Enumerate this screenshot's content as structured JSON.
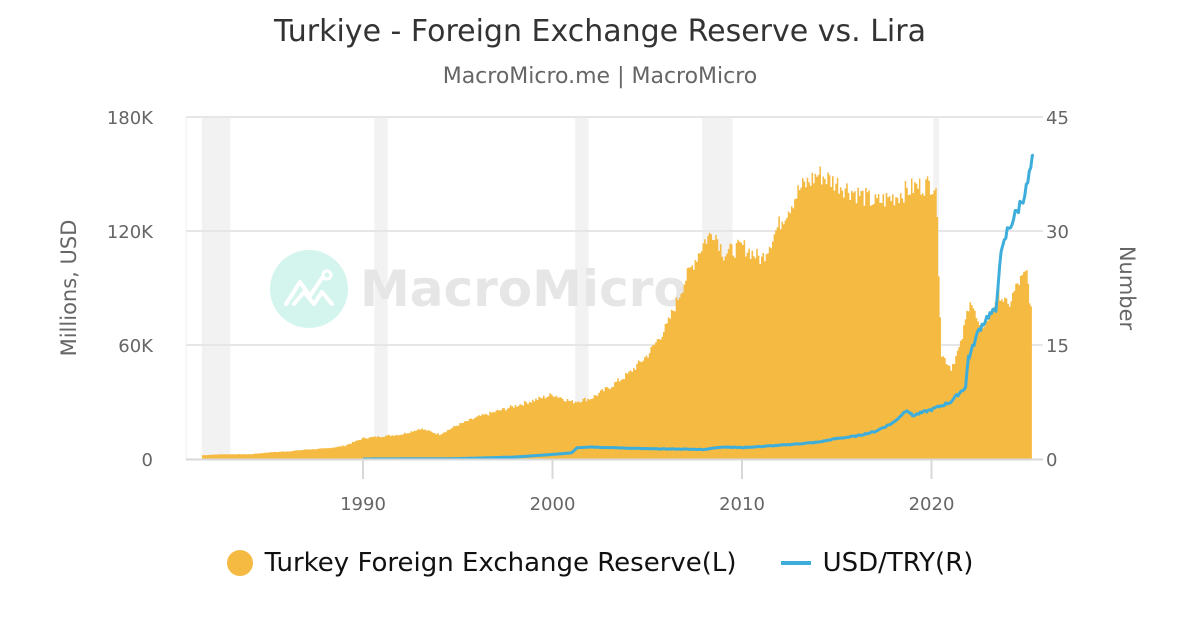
{
  "header": {
    "title": "Turkiye - Foreign Exchange Reserve vs. Lira",
    "subtitle": "MacroMicro.me | MacroMicro"
  },
  "watermark": {
    "text": "MacroMicro"
  },
  "axes": {
    "left": {
      "title": "Millions, USD",
      "ticks": [
        "0",
        "60K",
        "120K",
        "180K"
      ]
    },
    "right": {
      "title": "Number",
      "ticks": [
        "0",
        "15",
        "30",
        "45"
      ]
    },
    "x": {
      "ticks": [
        "1990",
        "2000",
        "2010",
        "2020"
      ]
    }
  },
  "legend": {
    "items": [
      {
        "label": "Turkey Foreign Exchange Reserve(L)",
        "color": "#F5BA42",
        "marker": "circle"
      },
      {
        "label": "USD/TRY(R)",
        "color": "#3DAEDB",
        "marker": "line"
      }
    ]
  },
  "colors": {
    "reserve": "#F5BA42",
    "usdtry": "#3DAEDB",
    "recession_band": "#F2F2F2",
    "gridline": "#E6E6E6",
    "watermark_circle": "#D4F5EE",
    "watermark_text": "#E6E6E6"
  },
  "chart_data": {
    "type": "area+line",
    "title": "Turkiye - Foreign Exchange Reserve vs. Lira",
    "subtitle": "MacroMicro.me | MacroMicro",
    "xlabel": "",
    "ylabel_left": "Millions, USD",
    "ylabel_right": "Number",
    "ylim_left": [
      0,
      180000
    ],
    "ylim_right": [
      0,
      45
    ],
    "xlim": [
      1980.8,
      2026.0
    ],
    "grid": true,
    "legend_position": "bottom",
    "recession_bands": [
      [
        1981.5,
        1983.0
      ],
      [
        1990.6,
        1991.3
      ],
      [
        2001.2,
        2001.9
      ],
      [
        2007.9,
        2009.5
      ],
      [
        2020.1,
        2020.4
      ]
    ],
    "series": [
      {
        "name": "Turkey Foreign Exchange Reserve(L)",
        "axis": "left",
        "type": "area",
        "x": [
          1981.5,
          1982.5,
          1984,
          1985,
          1986,
          1987,
          1988,
          1989,
          1990,
          1991,
          1992,
          1993,
          1994,
          1995,
          1996,
          1997,
          1998,
          1999,
          2000,
          2001,
          2002,
          2003,
          2004,
          2005,
          2006,
          2007,
          2008,
          2008.5,
          2009,
          2010,
          2011,
          2012,
          2013,
          2014,
          2015,
          2016,
          2017,
          2018,
          2019,
          2020.0,
          2020.2,
          2020.5,
          2021,
          2021.5,
          2022,
          2022.5,
          2023,
          2023.5,
          2024,
          2024.5,
          2025,
          2025.3
        ],
        "values": [
          2000,
          2500,
          2500,
          3500,
          4000,
          5000,
          5500,
          7000,
          11000,
          12000,
          13000,
          16000,
          13000,
          18000,
          22000,
          25000,
          28000,
          31000,
          34000,
          30000,
          32000,
          38000,
          45000,
          55000,
          70000,
          95000,
          115000,
          120000,
          108000,
          112000,
          105000,
          125000,
          142000,
          150000,
          145000,
          140000,
          135000,
          138000,
          143000,
          145000,
          145000,
          55000,
          48000,
          60000,
          85000,
          68000,
          75000,
          88000,
          80000,
          92000,
          98000,
          72000
        ]
      },
      {
        "name": "USD/TRY(R)",
        "axis": "right",
        "type": "line",
        "x": [
          1990,
          1995,
          1998,
          2000,
          2001,
          2001.3,
          2002,
          2003,
          2005,
          2007,
          2008,
          2009,
          2010,
          2012,
          2014,
          2015,
          2016,
          2017,
          2018,
          2018.7,
          2019,
          2020,
          2021,
          2021.8,
          2021.95,
          2022,
          2022.5,
          2023,
          2023.4,
          2023.6,
          2024,
          2024.5,
          2025,
          2025.4
        ],
        "values": [
          0.002,
          0.05,
          0.26,
          0.6,
          0.8,
          1.5,
          1.6,
          1.5,
          1.35,
          1.3,
          1.25,
          1.6,
          1.5,
          1.8,
          2.2,
          2.7,
          3.0,
          3.6,
          4.8,
          6.5,
          5.7,
          6.5,
          7.5,
          9.5,
          13.5,
          13.5,
          17,
          18.9,
          19.5,
          26,
          30,
          32.5,
          35.5,
          40
        ]
      }
    ]
  }
}
